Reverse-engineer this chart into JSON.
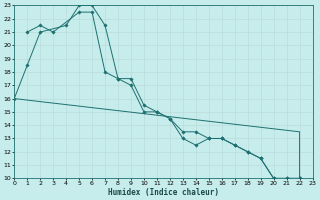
{
  "xlabel": "Humidex (Indice chaleur)",
  "xlim": [
    0,
    23
  ],
  "ylim": [
    10,
    23
  ],
  "xticks": [
    0,
    1,
    2,
    3,
    4,
    5,
    6,
    7,
    8,
    9,
    10,
    11,
    12,
    13,
    14,
    15,
    16,
    17,
    18,
    19,
    20,
    21,
    22,
    23
  ],
  "yticks": [
    10,
    11,
    12,
    13,
    14,
    15,
    16,
    17,
    18,
    19,
    20,
    21,
    22,
    23
  ],
  "bg_color": "#c6eceb",
  "grid_major_color": "#b8d8d6",
  "grid_minor_color": "#d4eeec",
  "line_color": "#1e7070",
  "line1_x": [
    0,
    1,
    2,
    4,
    5,
    6,
    7,
    8,
    9,
    10,
    11,
    12,
    13,
    14,
    15,
    16,
    17,
    18,
    19,
    20,
    21,
    22
  ],
  "line1_y": [
    16,
    18.5,
    21,
    21.5,
    23,
    23,
    21.5,
    17.5,
    17,
    15,
    15,
    14.5,
    13,
    12.5,
    13,
    13,
    12.5,
    12,
    11.5,
    10,
    10,
    10
  ],
  "line2_x": [
    1,
    2,
    3,
    5,
    6,
    7,
    8,
    9,
    10,
    11,
    12,
    13,
    14,
    15,
    16,
    17,
    18,
    19,
    20,
    21,
    22
  ],
  "line2_y": [
    21,
    21.5,
    21,
    22.5,
    22.5,
    18,
    17.5,
    17.5,
    15.5,
    15,
    14.5,
    13.5,
    13.5,
    13,
    13,
    12.5,
    12,
    11.5,
    10,
    10,
    10
  ],
  "line3_x": [
    0,
    22,
    22
  ],
  "line3_y": [
    16,
    13.5,
    10
  ]
}
